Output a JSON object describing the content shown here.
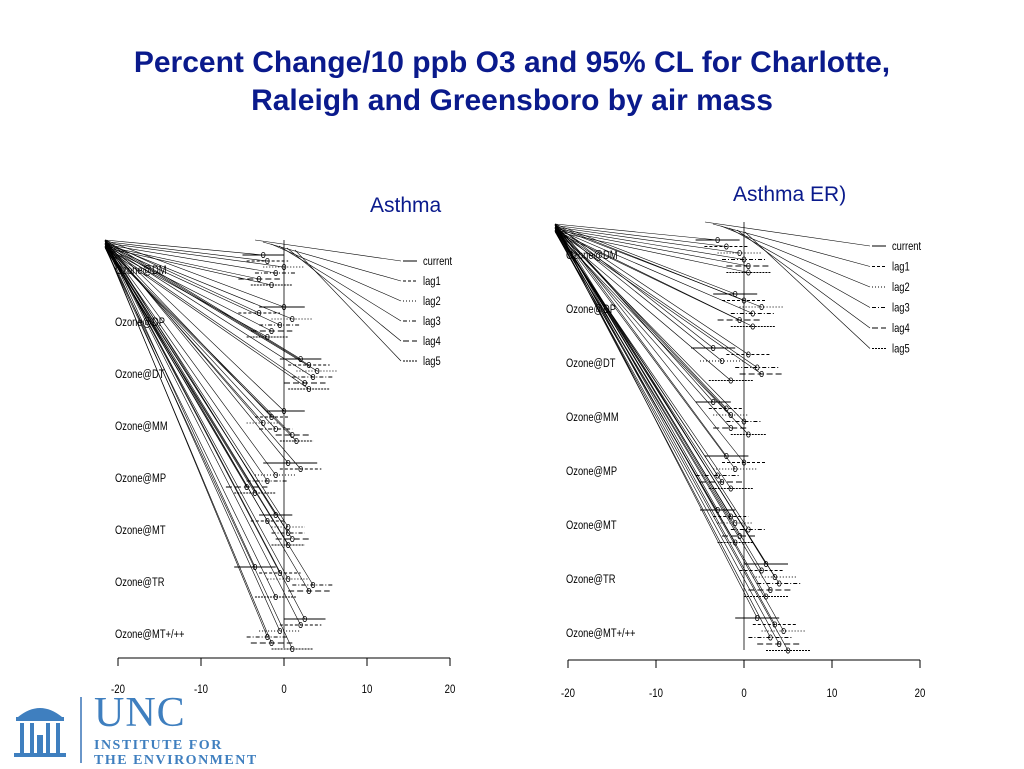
{
  "title": "Percent Change/10 ppb O3 and 95% CL for Charlotte, Raleigh and Greensboro by air mass",
  "title_lines": [
    "Percent Change/10 ppb O3 and 95% CL for Charlotte,",
    "Raleigh and Greensboro by air mass"
  ],
  "logo": {
    "name": "UNC",
    "line1": "INSTITUTE FOR",
    "line2": "THE ENVIRONMENT"
  },
  "colors": {
    "title": "#0a1a8c",
    "logo": "#3f7fbf",
    "ink": "#000000"
  },
  "chart_data": [
    {
      "type": "forest",
      "title": "Asthma",
      "xlim": [
        -20,
        20
      ],
      "xticks": [
        -20,
        -10,
        0,
        10,
        20
      ],
      "legend": [
        "current",
        "lag1",
        "lag2",
        "lag3",
        "lag4",
        "lag5"
      ],
      "legend_position": "top-right",
      "categories": [
        "Ozone@DM",
        "Ozone@DP",
        "Ozone@DT",
        "Ozone@MM",
        "Ozone@MP",
        "Ozone@MT",
        "Ozone@TR",
        "Ozone@MT+/++"
      ],
      "series": [
        {
          "name": "current",
          "estimates": [
            -2.5,
            0.0,
            2.0,
            0.0,
            0.5,
            -1.0,
            -3.5,
            2.5
          ],
          "lower": [
            -5.0,
            -3.0,
            -0.5,
            -2.0,
            -2.5,
            -3.0,
            -6.0,
            0.0
          ],
          "upper": [
            0.0,
            2.5,
            4.5,
            2.5,
            4.0,
            1.0,
            -1.0,
            5.0
          ]
        },
        {
          "name": "lag1",
          "estimates": [
            -2.0,
            -3.0,
            3.0,
            -1.5,
            2.0,
            -2.0,
            -0.5,
            2.0
          ],
          "lower": [
            -4.5,
            -5.5,
            0.5,
            -3.5,
            -0.5,
            -4.0,
            -3.0,
            -0.5
          ],
          "upper": [
            0.5,
            -0.5,
            5.5,
            0.5,
            4.5,
            0.0,
            2.0,
            4.5
          ]
        },
        {
          "name": "lag2",
          "estimates": [
            0.0,
            1.0,
            4.0,
            -2.5,
            -1.0,
            0.5,
            0.5,
            -0.5
          ],
          "lower": [
            -2.5,
            -1.5,
            1.5,
            -4.5,
            -3.5,
            -1.5,
            -2.0,
            -3.0
          ],
          "upper": [
            2.5,
            3.5,
            6.5,
            -0.5,
            1.5,
            2.5,
            3.0,
            2.0
          ]
        },
        {
          "name": "lag3",
          "estimates": [
            -1.0,
            -0.5,
            3.5,
            -1.0,
            -2.0,
            0.5,
            3.5,
            -2.0
          ],
          "lower": [
            -3.5,
            -3.0,
            1.0,
            -3.0,
            -4.5,
            -1.5,
            1.0,
            -4.5
          ],
          "upper": [
            1.5,
            2.0,
            6.0,
            1.0,
            0.5,
            2.5,
            6.0,
            0.5
          ]
        },
        {
          "name": "lag4",
          "estimates": [
            -3.0,
            -1.5,
            2.5,
            1.0,
            -4.5,
            1.0,
            3.0,
            -1.5
          ],
          "lower": [
            -5.5,
            -4.0,
            0.0,
            -1.0,
            -7.0,
            -1.0,
            0.5,
            -4.0
          ],
          "upper": [
            -0.5,
            1.0,
            5.0,
            3.0,
            -2.0,
            3.0,
            5.5,
            1.0
          ]
        },
        {
          "name": "lag5",
          "estimates": [
            -1.5,
            -2.0,
            3.0,
            1.5,
            -3.5,
            0.5,
            -1.0,
            1.0
          ],
          "lower": [
            -4.0,
            -4.5,
            0.5,
            -0.5,
            -6.0,
            -1.5,
            -3.5,
            -1.5
          ],
          "upper": [
            1.0,
            0.5,
            5.5,
            3.5,
            -1.0,
            2.5,
            1.5,
            3.5
          ]
        }
      ]
    },
    {
      "type": "forest",
      "title": "Asthma ER)",
      "xlim": [
        -20,
        20
      ],
      "xticks": [
        -20,
        -10,
        0,
        10,
        20
      ],
      "legend": [
        "current",
        "lag1",
        "lag2",
        "lag3",
        "lag4",
        "lag5"
      ],
      "legend_position": "top-right",
      "categories": [
        "Ozone@DM",
        "Ozone@DP",
        "Ozone@DT",
        "Ozone@MM",
        "Ozone@MP",
        "Ozone@MT",
        "Ozone@TR",
        "Ozone@MT+/++"
      ],
      "series": [
        {
          "name": "current",
          "estimates": [
            -3.0,
            -1.0,
            -3.5,
            -3.5,
            -2.0,
            -3.0,
            2.5,
            1.5
          ],
          "lower": [
            -5.5,
            -3.5,
            -6.0,
            -5.5,
            -4.5,
            -5.0,
            0.0,
            -1.0
          ],
          "upper": [
            -0.5,
            1.5,
            -1.0,
            -1.5,
            0.5,
            -1.0,
            5.0,
            4.0
          ]
        },
        {
          "name": "lag1",
          "estimates": [
            -2.0,
            0.0,
            0.5,
            -2.0,
            0.0,
            -1.5,
            2.0,
            3.5
          ],
          "lower": [
            -4.5,
            -2.5,
            -2.0,
            -4.0,
            -2.5,
            -3.5,
            -0.5,
            1.0
          ],
          "upper": [
            0.5,
            2.5,
            3.0,
            0.0,
            2.5,
            0.5,
            4.5,
            6.0
          ]
        },
        {
          "name": "lag2",
          "estimates": [
            -0.5,
            2.0,
            -2.5,
            -1.5,
            -1.0,
            -1.0,
            3.5,
            4.5
          ],
          "lower": [
            -3.0,
            -0.5,
            -5.0,
            -3.5,
            -3.5,
            -3.0,
            1.0,
            2.0
          ],
          "upper": [
            2.0,
            4.5,
            0.0,
            0.5,
            1.5,
            1.0,
            6.0,
            7.0
          ]
        },
        {
          "name": "lag3",
          "estimates": [
            0.0,
            1.0,
            1.5,
            0.0,
            -3.0,
            0.5,
            4.0,
            3.0
          ],
          "lower": [
            -2.5,
            -1.5,
            -1.0,
            -2.0,
            -5.5,
            -1.5,
            1.5,
            0.5
          ],
          "upper": [
            2.5,
            3.5,
            4.0,
            2.0,
            -0.5,
            2.5,
            6.5,
            5.5
          ]
        },
        {
          "name": "lag4",
          "estimates": [
            0.5,
            -0.5,
            2.0,
            -1.5,
            -2.5,
            -0.5,
            3.0,
            4.0
          ],
          "lower": [
            -2.0,
            -3.0,
            -0.5,
            -3.5,
            -5.0,
            -2.5,
            0.5,
            1.5
          ],
          "upper": [
            3.0,
            2.0,
            4.5,
            0.5,
            0.0,
            1.5,
            5.5,
            6.5
          ]
        },
        {
          "name": "lag5",
          "estimates": [
            0.5,
            1.0,
            -1.5,
            0.5,
            -1.5,
            -1.0,
            2.5,
            5.0
          ],
          "lower": [
            -2.0,
            -1.5,
            -4.0,
            -1.5,
            -4.0,
            -3.0,
            0.0,
            2.5
          ],
          "upper": [
            3.0,
            3.5,
            1.0,
            2.5,
            1.0,
            1.0,
            5.0,
            7.5
          ]
        }
      ]
    }
  ]
}
